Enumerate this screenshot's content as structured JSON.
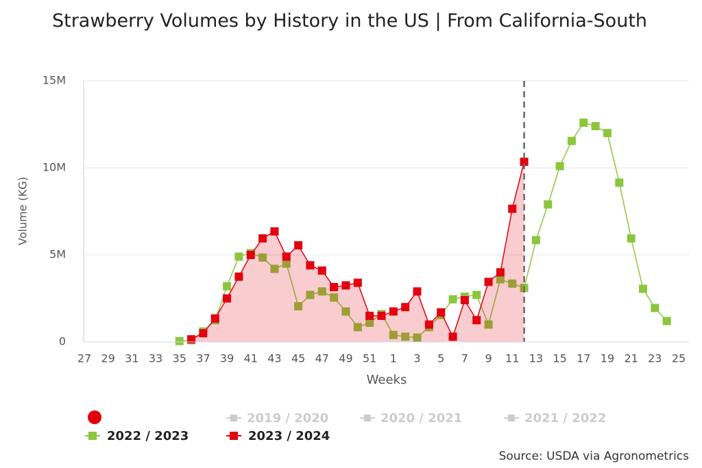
{
  "chart_data": {
    "type": "line",
    "title": "Strawberry Volumes by History in the US | From California-South",
    "y_label": "Volume (KG)",
    "x_label": "Weeks",
    "source": "Source: USDA via Agronometrics",
    "categories": [
      "27",
      null,
      "29",
      null,
      "31",
      null,
      "33",
      null,
      "35",
      null,
      "37",
      null,
      "39",
      null,
      "41",
      null,
      "43",
      null,
      "45",
      null,
      "47",
      null,
      "49",
      null,
      "51",
      null,
      "1",
      null,
      "3",
      null,
      "5",
      null,
      "7",
      null,
      "9",
      null,
      "11",
      null,
      "13",
      null,
      "15",
      null,
      "17",
      null,
      "19",
      null,
      "21",
      null,
      "23",
      null,
      "25"
    ],
    "ylim": [
      0,
      15000000
    ],
    "yticks": [
      0,
      {
        "value": 5000000,
        "label": "5M"
      },
      {
        "value": 10000000,
        "label": "10M"
      },
      {
        "value": 15000000,
        "label": "15M"
      }
    ],
    "grid": true,
    "marker_line_index": 37,
    "hidden_series": [
      "2019 / 2020",
      "2020 / 2021",
      "2021 / 2022"
    ],
    "series": [
      {
        "name": "2022 / 2023",
        "color": "#8cc63f",
        "area": false,
        "values": [
          null,
          null,
          null,
          null,
          null,
          null,
          null,
          null,
          50000,
          100000,
          600000,
          1250000,
          3200000,
          4900000,
          5100000,
          4850000,
          4200000,
          4500000,
          2050000,
          2700000,
          2900000,
          2550000,
          1750000,
          850000,
          1100000,
          1600000,
          400000,
          300000,
          250000,
          850000,
          1550000,
          2450000,
          2600000,
          2700000,
          1000000,
          3600000,
          3350000,
          3100000,
          5850000,
          7900000,
          10100000,
          11550000,
          12600000,
          12400000,
          12000000,
          9150000,
          5950000,
          3050000,
          1950000,
          1200000,
          null
        ]
      },
      {
        "name": "2023 / 2024",
        "color": "#e3000f",
        "area": true,
        "values": [
          null,
          null,
          null,
          null,
          null,
          null,
          null,
          null,
          null,
          150000,
          500000,
          1350000,
          2500000,
          3750000,
          5000000,
          5950000,
          6350000,
          4900000,
          5550000,
          4400000,
          4100000,
          3150000,
          3250000,
          3400000,
          1500000,
          1500000,
          1750000,
          2000000,
          2900000,
          1000000,
          1700000,
          300000,
          2400000,
          1250000,
          3450000,
          4000000,
          7650000,
          10350000,
          null,
          null,
          null,
          null,
          null,
          null,
          null,
          null,
          null,
          null,
          null,
          null,
          null
        ]
      }
    ]
  }
}
